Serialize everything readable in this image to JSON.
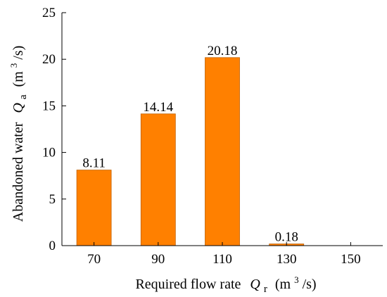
{
  "chart_data": {
    "type": "bar",
    "categories": [
      "70",
      "90",
      "110",
      "130"
    ],
    "values": [
      8.11,
      14.14,
      20.18,
      0.18
    ],
    "data_labels": [
      "8.11",
      "14.14",
      "20.18",
      "0.18"
    ],
    "bar_color": "#ff8000",
    "bar_edge_color": "#c06000",
    "x_ticks": [
      "70",
      "90",
      "110",
      "130",
      "150"
    ],
    "y_ticks": [
      "0",
      "5",
      "10",
      "15",
      "20",
      "25"
    ],
    "ylim": [
      0,
      25
    ],
    "grid": false,
    "xlabel": {
      "text": "Required flow rate",
      "symbol": "Q",
      "subscript": "r",
      "unit_open": "(m",
      "unit_power": "3",
      "unit_close": "/s)"
    },
    "ylabel": {
      "text": "Abandoned water",
      "symbol": "Q",
      "subscript": "a",
      "unit_open": "(m",
      "unit_power": "3",
      "unit_close": "/s)"
    }
  }
}
